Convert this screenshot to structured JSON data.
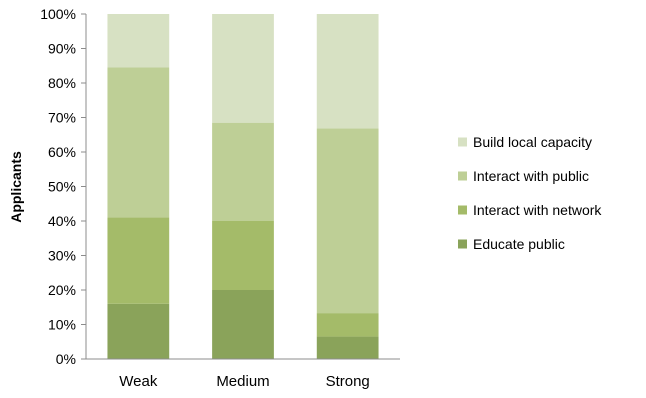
{
  "chart_data": {
    "type": "bar",
    "stacked": "percent",
    "categories": [
      "Weak",
      "Medium",
      "Strong"
    ],
    "ylabel": "Applicants",
    "xlabel": "",
    "ylim": [
      0,
      100
    ],
    "yticks": [
      "0%",
      "10%",
      "20%",
      "30%",
      "40%",
      "50%",
      "60%",
      "70%",
      "80%",
      "90%",
      "100%"
    ],
    "grid": false,
    "legend_position": "right",
    "series": [
      {
        "name": "Educate public",
        "color": "#8aa35a",
        "values": [
          16,
          20,
          6.5
        ]
      },
      {
        "name": "Interact with network",
        "color": "#a4bb69",
        "values": [
          25,
          20,
          6.8
        ]
      },
      {
        "name": "Interact with public",
        "color": "#becf96",
        "values": [
          43.5,
          28.5,
          53.5
        ]
      },
      {
        "name": "Build local capacity",
        "color": "#d7e1c3",
        "values": [
          15.5,
          31.5,
          33.2
        ]
      }
    ]
  }
}
